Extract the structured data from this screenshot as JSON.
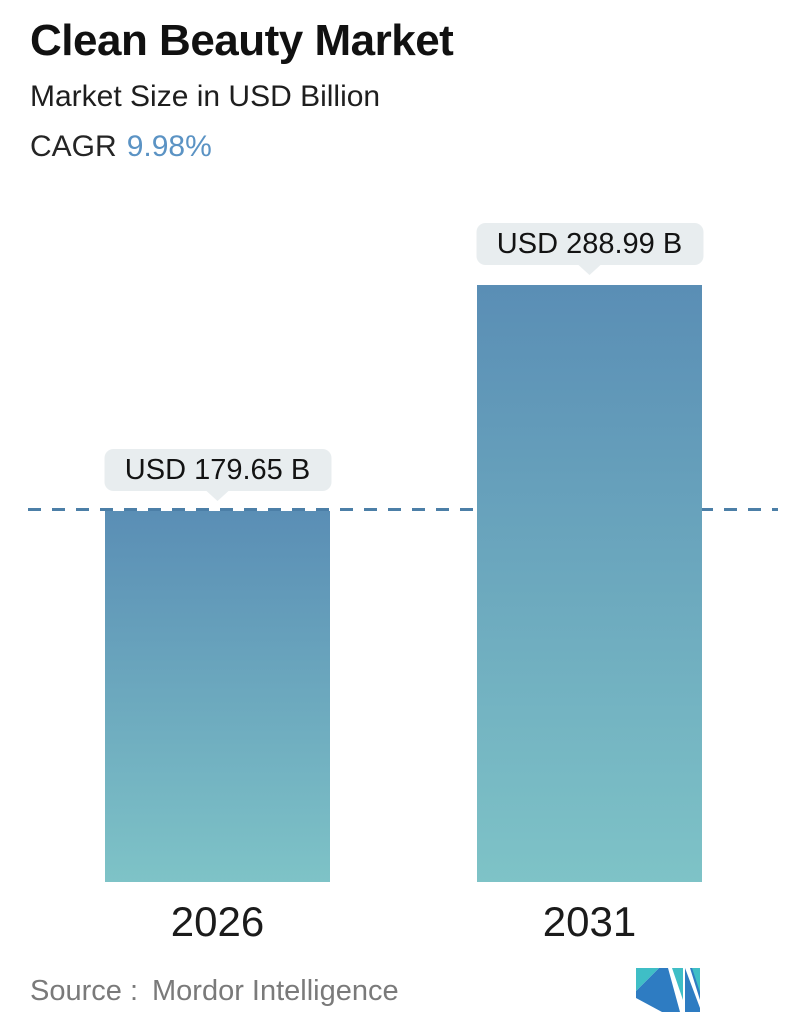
{
  "header": {
    "title": "Clean Beauty Market",
    "subtitle": "Market Size in USD Billion",
    "cagr_label": "CAGR",
    "cagr_value": "9.98%"
  },
  "chart_data": {
    "type": "bar",
    "title": "Clean Beauty Market",
    "subtitle": "Market Size in USD Billion",
    "unit": "USD Billion",
    "cagr_percent": "9.98%",
    "categories": [
      "2026",
      "2031"
    ],
    "values": [
      179.65,
      288.99
    ],
    "value_labels": [
      "USD 179.65 B",
      "USD 288.99 B"
    ],
    "reference_line": {
      "value": 179.65,
      "style": "dashed"
    },
    "ylim": [
      0,
      300
    ],
    "grid": false,
    "legend": false
  },
  "footer": {
    "source_label": "Source :",
    "source_name": "Mordor Intelligence",
    "logo": "mordor-intelligence-logo"
  },
  "colors": {
    "bar_gradient_top": "#5a8eb5",
    "bar_gradient_bottom": "#7ec3c7",
    "dashed_line": "#4c7fa7",
    "cagr_accent": "#5b93c4",
    "tooltip_bg": "#e8edef",
    "title_text": "#111111",
    "year_text": "#1b1b1b",
    "source_text": "#7a7a7a",
    "logo_blue": "#2e7cc2",
    "logo_teal": "#3fbec6"
  }
}
